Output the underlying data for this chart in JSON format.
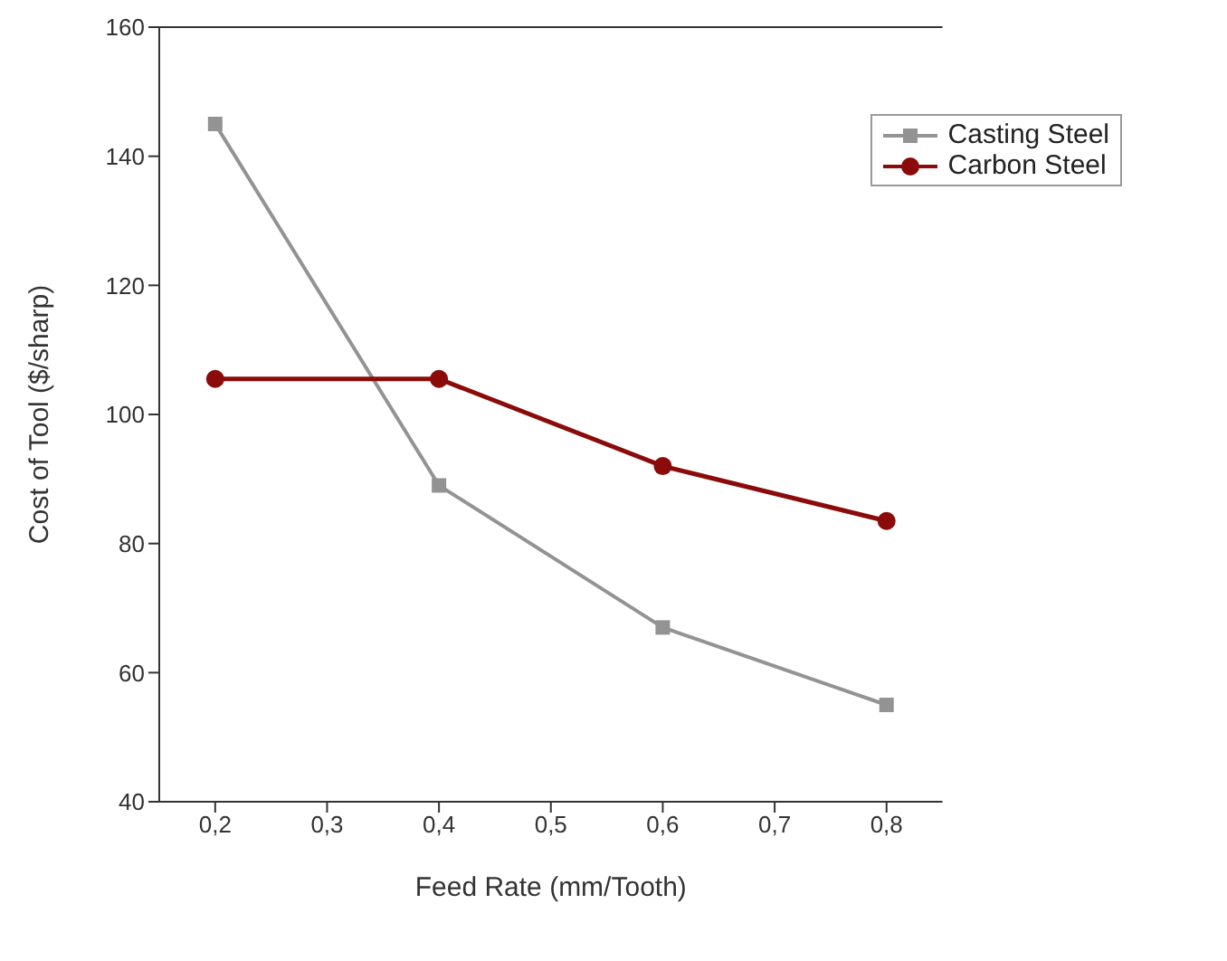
{
  "chart_data": {
    "type": "line",
    "xlabel": "Feed Rate (mm/Tooth)",
    "ylabel": "Cost of Tool ($/sharp)",
    "x": [
      0.2,
      0.4,
      0.6,
      0.8
    ],
    "series": [
      {
        "name": "Casting Steel",
        "color": "#939393",
        "marker": "square",
        "values": [
          145,
          89,
          67,
          55
        ]
      },
      {
        "name": "Carbon Steel",
        "color": "#8b0a0a",
        "marker": "circle",
        "values": [
          105.5,
          105.5,
          92,
          83.5
        ]
      }
    ],
    "xlim": [
      0.15,
      0.85
    ],
    "xticks": [
      {
        "value": 0.2,
        "label": "0,2"
      },
      {
        "value": 0.3,
        "label": "0,3"
      },
      {
        "value": 0.4,
        "label": "0,4"
      },
      {
        "value": 0.5,
        "label": "0,5"
      },
      {
        "value": 0.6,
        "label": "0,6"
      },
      {
        "value": 0.7,
        "label": "0,7"
      },
      {
        "value": 0.8,
        "label": "0,8"
      }
    ],
    "ylim": [
      40,
      160
    ],
    "yticks": [
      40,
      60,
      80,
      100,
      120,
      140,
      160
    ],
    "legend": "top right",
    "grid": false
  }
}
